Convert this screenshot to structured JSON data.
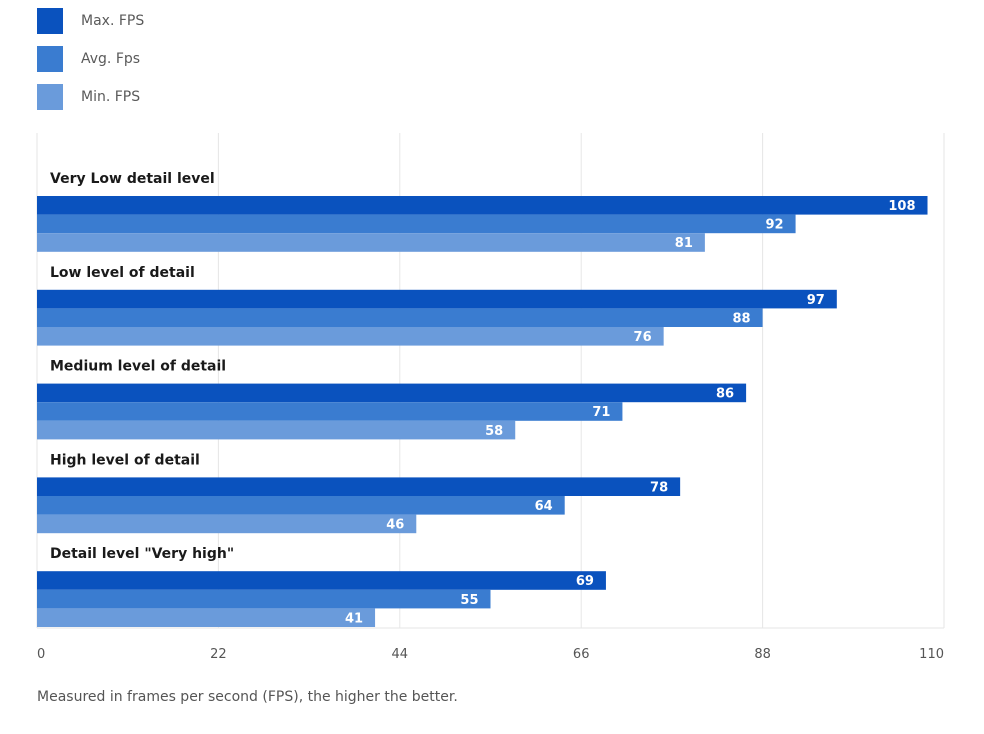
{
  "colors": {
    "max": "#0a52be",
    "avg": "#3a7cd0",
    "min": "#6a9bdb",
    "grid": "#e6e6e6",
    "tick": "#555555",
    "category": "#1a1a1a",
    "label": "#ffffff"
  },
  "legend": [
    {
      "label": "Max. FPS"
    },
    {
      "label": "Avg. Fps"
    },
    {
      "label": "Min. FPS"
    }
  ],
  "chart_data": {
    "type": "bar",
    "orientation": "horizontal",
    "categories": [
      "Very Low detail level",
      "Low level of detail",
      "Medium level of detail",
      "High level of detail",
      "Detail level \"Very high\""
    ],
    "series": [
      {
        "name": "Max. FPS",
        "values": [
          108,
          97,
          86,
          78,
          69
        ]
      },
      {
        "name": "Avg. Fps",
        "values": [
          92,
          88,
          71,
          64,
          55
        ]
      },
      {
        "name": "Min. FPS",
        "values": [
          81,
          76,
          58,
          46,
          41
        ]
      }
    ],
    "xlim": [
      0,
      110
    ],
    "xticks": [
      "0",
      "22",
      "44",
      "66",
      "88",
      "110"
    ],
    "grid": true,
    "legend_position": "top-left",
    "xlabel": "",
    "ylabel": "",
    "note": "Measured in frames per second (FPS), the higher the better."
  }
}
